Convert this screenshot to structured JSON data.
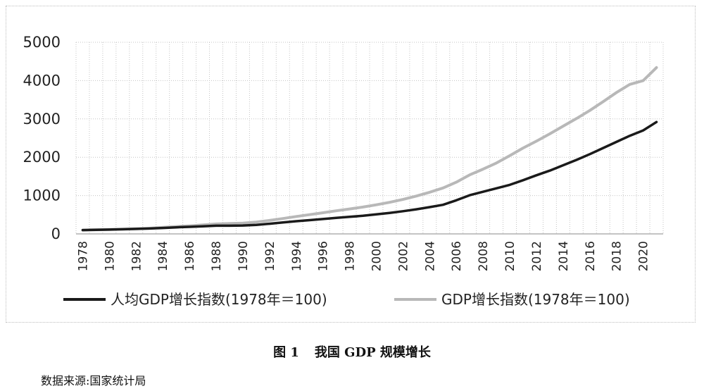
{
  "chart_data": {
    "type": "line",
    "x": [
      1978,
      1979,
      1980,
      1981,
      1982,
      1983,
      1984,
      1985,
      1986,
      1987,
      1988,
      1989,
      1990,
      1991,
      1992,
      1993,
      1994,
      1995,
      1996,
      1997,
      1998,
      1999,
      2000,
      2001,
      2002,
      2003,
      2004,
      2005,
      2006,
      2007,
      2008,
      2009,
      2010,
      2011,
      2012,
      2013,
      2014,
      2015,
      2016,
      2017,
      2018,
      2019,
      2020,
      2021
    ],
    "series": [
      {
        "name": "人均GDP增长指数(1978年＝100)",
        "color": "#1a1a1a",
        "values": [
          100,
          106,
          113,
          121,
          130,
          140,
          155,
          171,
          183,
          199,
          213,
          214,
          219,
          236,
          264,
          297,
          330,
          358,
          388,
          418,
          445,
          473,
          509,
          547,
          591,
          642,
          699,
          759,
          876,
          1010,
          1100,
          1190,
          1280,
          1400,
          1530,
          1650,
          1790,
          1930,
          2080,
          2240,
          2400,
          2560,
          2700,
          2920
        ]
      },
      {
        "name": "GDP增长指数(1978年＝100)",
        "color": "#b8b8b8",
        "values": [
          100,
          108,
          116,
          122,
          133,
          147,
          170,
          192,
          210,
          234,
          260,
          271,
          282,
          308,
          352,
          401,
          454,
          502,
          552,
          603,
          650,
          700,
          760,
          824,
          898,
          988,
          1087,
          1198,
          1350,
          1540,
          1690,
          1850,
          2040,
          2240,
          2420,
          2610,
          2810,
          3010,
          3220,
          3450,
          3690,
          3900,
          4000,
          4340
        ]
      }
    ],
    "yticks": [
      0,
      1000,
      2000,
      3000,
      4000,
      5000
    ],
    "ylim": [
      0,
      5000
    ],
    "xticks": [
      1978,
      1980,
      1982,
      1984,
      1986,
      1988,
      1990,
      1992,
      1994,
      1996,
      1998,
      2000,
      2002,
      2004,
      2006,
      2008,
      2010,
      2012,
      2014,
      2016,
      2018,
      2020
    ],
    "grid": true,
    "legend_position": "bottom"
  },
  "caption": {
    "number": "图 1",
    "title": "我国 GDP 规模增长"
  },
  "source": "数据来源:国家统计局"
}
